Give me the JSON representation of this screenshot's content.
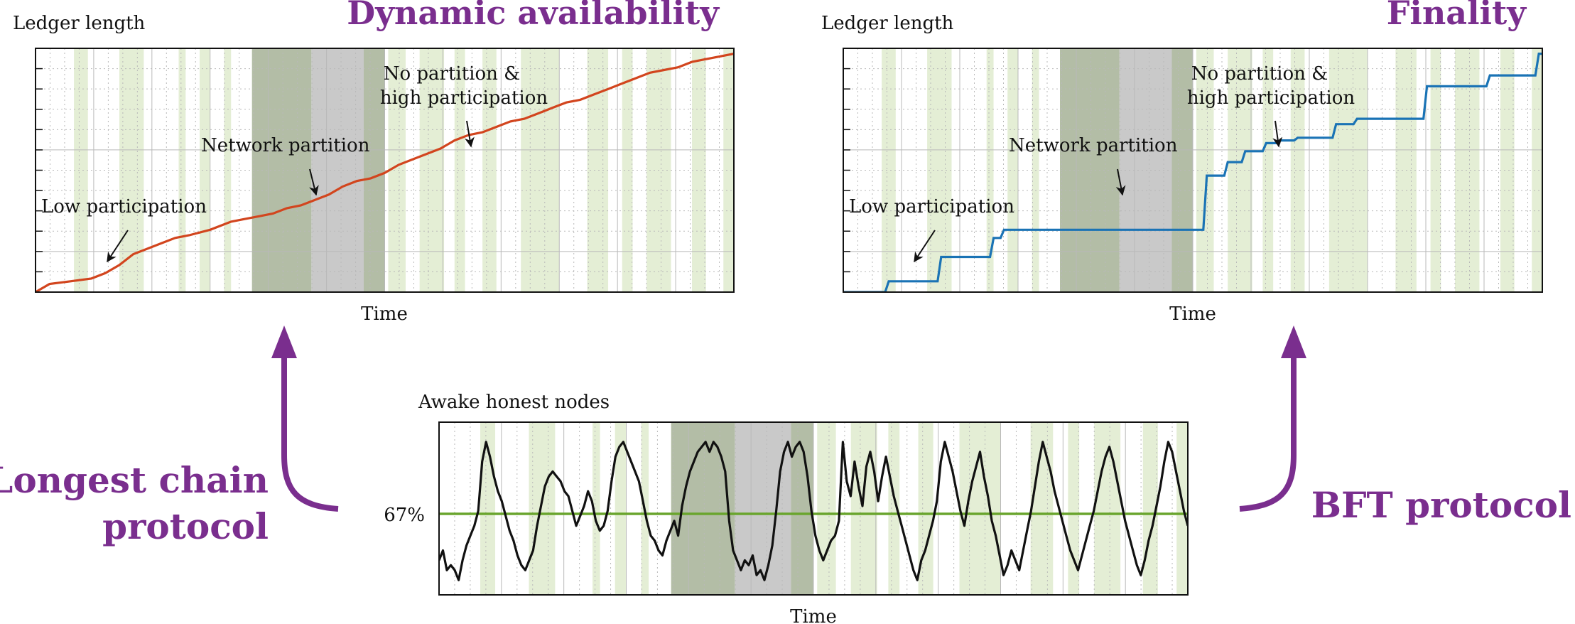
{
  "colors": {
    "purple": "#7a2e8e",
    "orange": "#d2451e",
    "blue": "#1a73b5",
    "black": "#111111",
    "green_line": "#6aa52e",
    "band_light": "#e4eed5",
    "band_dark": "#b3bda6",
    "band_gray": "#c9c9c9"
  },
  "titles": {
    "left_panel": "Dynamic availability",
    "right_panel": "Finality",
    "left_protocol_line1": "Longest chain",
    "left_protocol_line2": "protocol",
    "right_protocol": "BFT protocol"
  },
  "panels": {
    "left": {
      "ylabel": "Ledger length",
      "xlabel": "Time",
      "annotations": {
        "low": "Low participation",
        "partition": "Network partition",
        "high_line1": "No partition &",
        "high_line2": "high participation"
      }
    },
    "right": {
      "ylabel": "Ledger length",
      "xlabel": "Time",
      "annotations": {
        "low": "Low participation",
        "partition": "Network partition",
        "high_line1": "No partition &",
        "high_line2": "high participation"
      }
    },
    "bottom": {
      "ylabel": "Awake honest nodes",
      "xlabel": "Time",
      "threshold_label": "67%"
    }
  },
  "chart_data": [
    {
      "type": "line",
      "ylabel": "Ledger length",
      "xlabel": "Time",
      "series": [
        {
          "line_color": "orange",
          "x": [
            0,
            2,
            5,
            8,
            10,
            12,
            14,
            16,
            18,
            20,
            22,
            25,
            28,
            30,
            32,
            34,
            36,
            38,
            40,
            42,
            44,
            46,
            48,
            50,
            52,
            54,
            56,
            58,
            60,
            62,
            64,
            66,
            68,
            70,
            72,
            74,
            76,
            78,
            80,
            82,
            84,
            86,
            88,
            90,
            92,
            94,
            96,
            98,
            100
          ],
          "values": [
            0,
            3,
            4,
            5,
            7,
            10,
            14,
            16,
            18,
            20,
            21,
            23,
            26,
            27,
            28,
            29,
            31,
            32,
            34,
            36,
            39,
            41,
            42,
            44,
            47,
            49,
            51,
            53,
            56,
            58,
            59,
            61,
            63,
            64,
            66,
            68,
            70,
            71,
            73,
            75,
            77,
            79,
            81,
            82,
            83,
            85,
            86,
            87,
            88
          ]
        }
      ]
    },
    {
      "type": "line",
      "ylabel": "Ledger length",
      "xlabel": "Time",
      "series": [
        {
          "line_color": "blue",
          "x": [
            0,
            6,
            6.5,
            13.5,
            14,
            21,
            21.5,
            22.5,
            23,
            51.5,
            52,
            54.5,
            55,
            57,
            57.5,
            60,
            60.5,
            62,
            62.5,
            64.5,
            65,
            70,
            70.5,
            73,
            73.5,
            83,
            83.5,
            92,
            92.5,
            99,
            99.5,
            100
          ],
          "values": [
            0,
            0,
            4,
            4,
            13,
            13,
            20,
            20,
            23,
            23,
            43,
            43,
            48,
            48,
            52,
            52,
            55,
            55,
            56,
            56,
            57,
            57,
            62,
            62,
            64,
            64,
            76,
            76,
            80,
            80,
            88,
            88
          ]
        }
      ]
    },
    {
      "type": "line",
      "ylabel": "Awake honest nodes",
      "xlabel": "Time",
      "threshold": 67,
      "threshold_label": "67%",
      "series": [
        {
          "line_color": "black",
          "values": [
            62,
            64,
            60,
            61,
            60,
            58,
            62,
            65,
            67,
            69,
            72,
            82,
            86,
            83,
            79,
            76,
            74,
            71,
            68,
            66,
            63,
            61,
            60,
            62,
            64,
            69,
            73,
            77,
            79,
            80,
            79,
            78,
            76,
            75,
            72,
            69,
            71,
            73,
            76,
            74,
            70,
            68,
            69,
            72,
            78,
            83,
            85,
            86,
            84,
            82,
            80,
            78,
            74,
            70,
            67,
            66,
            64,
            63,
            66,
            68,
            70,
            67,
            73,
            77,
            80,
            82,
            84,
            85,
            86,
            84,
            86,
            85,
            83,
            80,
            70,
            64,
            62,
            60,
            62,
            61,
            63,
            59,
            60,
            58,
            61,
            65,
            72,
            80,
            84,
            86,
            83,
            85,
            86,
            84,
            79,
            72,
            67,
            64,
            62,
            64,
            66,
            67,
            70,
            86,
            78,
            75,
            82,
            77,
            73,
            81,
            84,
            80,
            74,
            79,
            83,
            79,
            75,
            72,
            69,
            66,
            63,
            60,
            58,
            62,
            64,
            67,
            70,
            74,
            82,
            86,
            83,
            80,
            76,
            72,
            69,
            74,
            78,
            81,
            84,
            79,
            75,
            70,
            67,
            63,
            59,
            61,
            64,
            62,
            60,
            64,
            68,
            72,
            77,
            82,
            86,
            83,
            80,
            76,
            73,
            70,
            67,
            64,
            62,
            60,
            63,
            66,
            69,
            72,
            76,
            80,
            83,
            85,
            82,
            78,
            74,
            70,
            67,
            64,
            61,
            59,
            62,
            66,
            69,
            73,
            77,
            82,
            86,
            84,
            80,
            76,
            72,
            69
          ]
        }
      ]
    }
  ]
}
